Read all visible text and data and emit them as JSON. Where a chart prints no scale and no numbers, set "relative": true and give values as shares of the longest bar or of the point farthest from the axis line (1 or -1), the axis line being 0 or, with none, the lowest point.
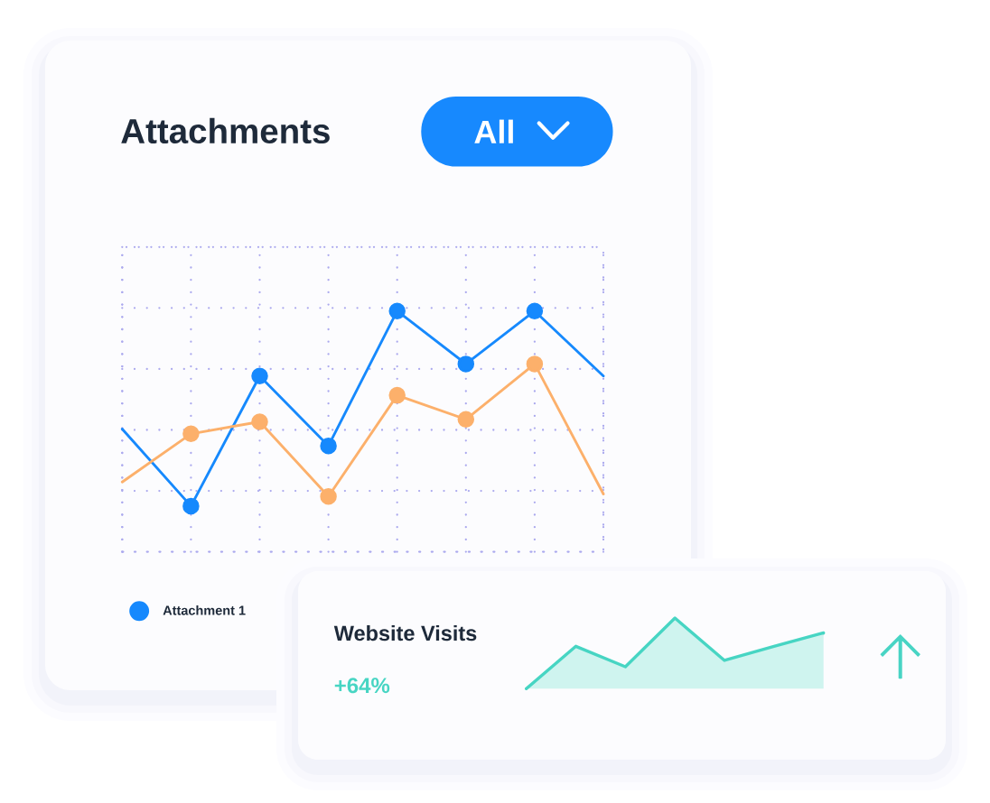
{
  "chart_data": [
    {
      "type": "line",
      "title": "Attachments",
      "annotations": [
        "All"
      ],
      "relative": true,
      "grid": true,
      "legend": "bottom left",
      "marker": "circle",
      "categories": [
        null,
        null,
        null,
        null,
        null,
        null,
        null,
        null
      ],
      "series": [
        {
          "name": "Attachment 1",
          "color": "#1689fd",
          "values": [
            0.51,
            0.19,
            0.73,
            0.44,
            1,
            0.78,
            1,
            0.73
          ]
        },
        {
          "color": "#fcb06b",
          "values": [
            0.29,
            0.49,
            0.54,
            0.23,
            0.65,
            0.55,
            0.78,
            0.24
          ]
        }
      ]
    },
    {
      "type": "area",
      "title": "Website Visits",
      "annotations": [
        "+64%"
      ],
      "relative": true,
      "categories": [
        null,
        null,
        null,
        null,
        null,
        null,
        null
      ],
      "values": [
        0,
        0.6,
        0.31,
        1,
        0.4,
        0.6,
        0.79
      ],
      "color": "#47d5c3"
    }
  ]
}
